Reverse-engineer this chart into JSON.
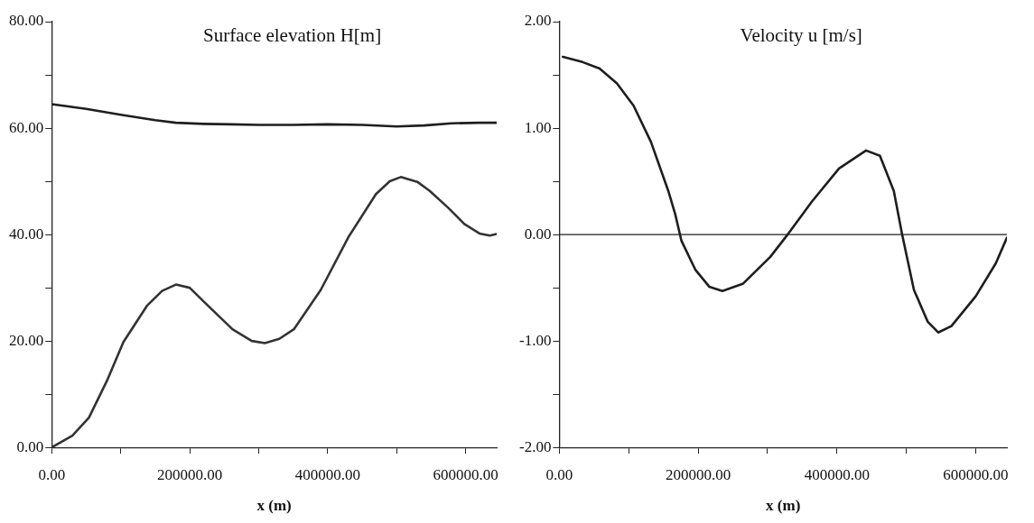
{
  "chart_data": [
    {
      "type": "line",
      "title": "Surface elevation H[m]",
      "xlabel": "x (m)",
      "xlim": [
        0,
        645000
      ],
      "ylim": [
        0,
        80
      ],
      "xticks": [
        {
          "value": 0,
          "label": "0.00"
        },
        {
          "value": 100000,
          "label": null
        },
        {
          "value": 200000,
          "label": "200000.00"
        },
        {
          "value": 300000,
          "label": null
        },
        {
          "value": 400000,
          "label": "400000.00"
        },
        {
          "value": 500000,
          "label": null
        },
        {
          "value": 600000,
          "label": "600000.00"
        }
      ],
      "yticks": [
        {
          "value": 0,
          "label": "0.00"
        },
        {
          "value": 10,
          "label": null
        },
        {
          "value": 20,
          "label": "20.00"
        },
        {
          "value": 30,
          "label": null
        },
        {
          "value": 40,
          "label": "40.00"
        },
        {
          "value": 50,
          "label": null
        },
        {
          "value": 60,
          "label": "60.00"
        },
        {
          "value": 70,
          "label": null
        },
        {
          "value": 80,
          "label": "80.00"
        }
      ],
      "grid": false,
      "legend": false,
      "marker": "none",
      "line_style": "solid",
      "series": [
        {
          "color": "#1e1e1e",
          "x": [
            0,
            50000,
            100000,
            150000,
            180000,
            220000,
            260000,
            300000,
            350000,
            400000,
            450000,
            500000,
            540000,
            580000,
            620000,
            645000
          ],
          "values": [
            64.5,
            63.6,
            62.5,
            61.5,
            61.0,
            60.8,
            60.7,
            60.6,
            60.6,
            60.7,
            60.6,
            60.3,
            60.5,
            60.9,
            61.0,
            61.0
          ]
        },
        {
          "color": "#333333",
          "x": [
            0,
            30000,
            54000,
            80000,
            104000,
            138000,
            160000,
            180000,
            200000,
            222000,
            262000,
            290000,
            309000,
            330000,
            351000,
            390000,
            430000,
            470000,
            490000,
            506000,
            530000,
            548000,
            575000,
            598000,
            620000,
            635000,
            645000
          ],
          "values": [
            0,
            2.2,
            5.6,
            12.5,
            19.8,
            26.6,
            29.4,
            30.6,
            30.0,
            27.2,
            22.2,
            20.0,
            19.6,
            20.4,
            22.2,
            29.6,
            39.5,
            47.6,
            50.0,
            50.8,
            49.9,
            48.2,
            45.0,
            42.0,
            40.2,
            39.8,
            40.1
          ]
        }
      ]
    },
    {
      "type": "line",
      "title": "Velocity u [m/s]",
      "xlabel": "x (m)",
      "xlim": [
        0,
        645000
      ],
      "ylim": [
        -2,
        2
      ],
      "xticks": [
        {
          "value": 0,
          "label": "0.00"
        },
        {
          "value": 100000,
          "label": null
        },
        {
          "value": 200000,
          "label": "200000.00"
        },
        {
          "value": 300000,
          "label": null
        },
        {
          "value": 400000,
          "label": "400000.00"
        },
        {
          "value": 500000,
          "label": null
        },
        {
          "value": 600000,
          "label": "600000.00"
        }
      ],
      "yticks": [
        {
          "value": -2,
          "label": "-2.00"
        },
        {
          "value": -1.5,
          "label": null
        },
        {
          "value": -1,
          "label": "-1.00"
        },
        {
          "value": -0.5,
          "label": null
        },
        {
          "value": 0,
          "label": "0.00"
        },
        {
          "value": 0.5,
          "label": null
        },
        {
          "value": 1,
          "label": "1.00"
        },
        {
          "value": 1.5,
          "label": null
        },
        {
          "value": 2,
          "label": "2.00"
        }
      ],
      "grid": false,
      "legend": false,
      "marker": "none",
      "line_style": "solid",
      "ref_lines": [
        {
          "axis": "y",
          "value": 0,
          "color": "#1e1e1e"
        }
      ],
      "series": [
        {
          "color": "#1e1e1e",
          "x": [
            5000,
            33500,
            58000,
            83000,
            107000,
            132000,
            157000,
            167000,
            176000,
            196000,
            216000,
            235000,
            265000,
            304000,
            329000,
            364000,
            403000,
            442000,
            462000,
            482000,
            494000,
            511000,
            531000,
            546000,
            565000,
            600000,
            629000,
            645000
          ],
          "values": [
            1.67,
            1.62,
            1.56,
            1.42,
            1.21,
            0.87,
            0.41,
            0.19,
            -0.06,
            -0.33,
            -0.49,
            -0.53,
            -0.46,
            -0.21,
            0.0,
            0.31,
            0.62,
            0.79,
            0.74,
            0.41,
            0.0,
            -0.52,
            -0.82,
            -0.92,
            -0.86,
            -0.58,
            -0.27,
            -0.03
          ]
        }
      ]
    }
  ]
}
